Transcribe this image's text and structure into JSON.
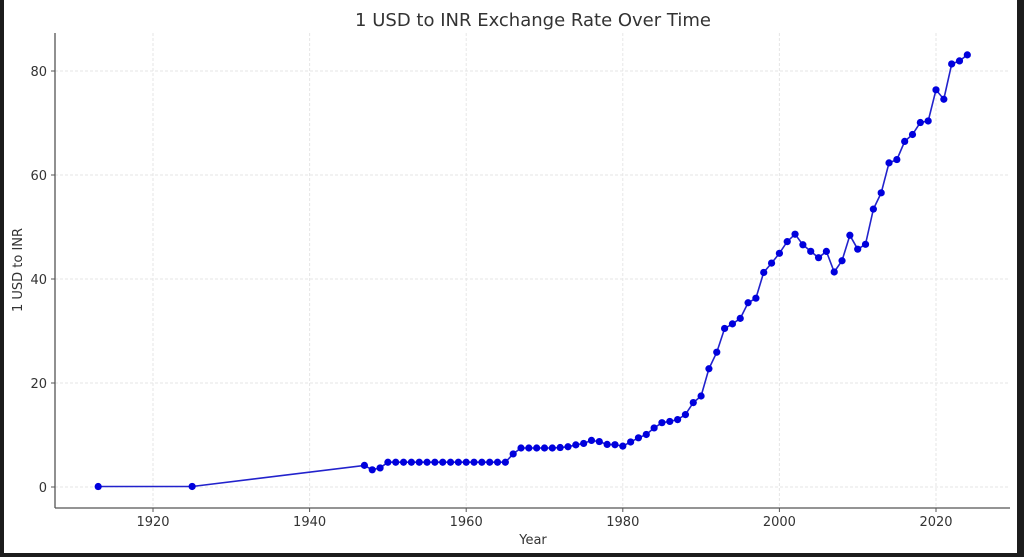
{
  "chart_data": {
    "type": "line",
    "title": "1 USD to INR Exchange Rate Over Time",
    "xlabel": "Year",
    "ylabel": "1 USD to INR",
    "xlim": [
      1906,
      2029
    ],
    "ylim": [
      -4,
      87
    ],
    "xticks": [
      1920,
      1940,
      1960,
      1980,
      2000,
      2020
    ],
    "yticks": [
      0,
      20,
      40,
      60,
      80
    ],
    "grid": true,
    "legend": null,
    "series": [
      {
        "name": "1 USD to INR",
        "color": "#0000cc",
        "marker": "circle",
        "x": [
          1913,
          1925,
          1947,
          1948,
          1949,
          1950,
          1951,
          1952,
          1953,
          1954,
          1955,
          1956,
          1957,
          1958,
          1959,
          1960,
          1961,
          1962,
          1963,
          1964,
          1965,
          1966,
          1967,
          1968,
          1969,
          1970,
          1971,
          1972,
          1973,
          1974,
          1975,
          1976,
          1977,
          1978,
          1979,
          1980,
          1981,
          1982,
          1983,
          1984,
          1985,
          1986,
          1987,
          1988,
          1989,
          1990,
          1991,
          1992,
          1993,
          1994,
          1995,
          1996,
          1997,
          1998,
          1999,
          2000,
          2001,
          2002,
          2003,
          2004,
          2005,
          2006,
          2007,
          2008,
          2009,
          2010,
          2011,
          2012,
          2013,
          2014,
          2015,
          2016,
          2017,
          2018,
          2019,
          2020,
          2021,
          2022,
          2023,
          2024
        ],
        "values": [
          0.09,
          0.1,
          4.16,
          3.31,
          3.67,
          4.76,
          4.76,
          4.76,
          4.76,
          4.76,
          4.76,
          4.76,
          4.76,
          4.76,
          4.76,
          4.76,
          4.76,
          4.76,
          4.76,
          4.76,
          4.76,
          6.36,
          7.5,
          7.5,
          7.5,
          7.5,
          7.5,
          7.59,
          7.74,
          8.1,
          8.38,
          8.96,
          8.74,
          8.19,
          8.13,
          7.86,
          8.66,
          9.46,
          10.1,
          11.36,
          12.37,
          12.61,
          12.96,
          13.92,
          16.23,
          17.5,
          22.74,
          25.92,
          30.49,
          31.37,
          32.43,
          35.43,
          36.31,
          41.26,
          43.06,
          44.94,
          47.19,
          48.61,
          46.58,
          45.32,
          44.1,
          45.31,
          41.35,
          43.51,
          48.41,
          45.73,
          46.67,
          53.44,
          56.57,
          62.33,
          62.97,
          66.46,
          67.79,
          70.09,
          70.39,
          76.38,
          74.57,
          81.35,
          81.94,
          83.1
        ]
      }
    ]
  },
  "labels": {
    "title": "1 USD to INR Exchange Rate Over Time",
    "xlabel": "Year",
    "ylabel": "1 USD to INR",
    "xticks": [
      "1920",
      "1940",
      "1960",
      "1980",
      "2000",
      "2020"
    ],
    "yticks": [
      "0",
      "20",
      "40",
      "60",
      "80"
    ]
  }
}
